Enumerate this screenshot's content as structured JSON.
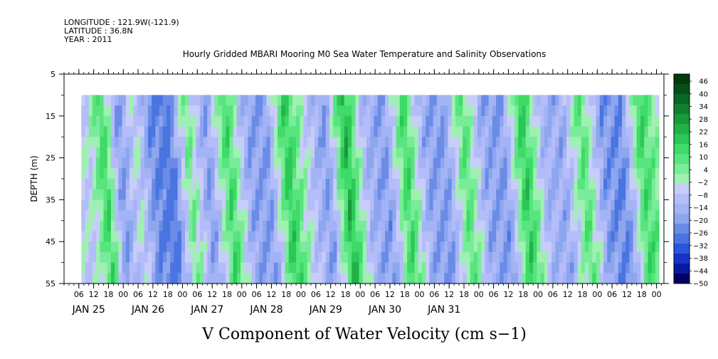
{
  "header": {
    "longitude": "LONGITUDE : 121.9W(-121.9)",
    "latitude": "LATITUDE : 36.8N",
    "year": "YEAR : 2011"
  },
  "colors": {
    "palette": [
      "#000066",
      "#0a1aa0",
      "#1633c8",
      "#2a55dd",
      "#4a74e0",
      "#6a8ce6",
      "#8da6ee",
      "#a3b3f5",
      "#b4bdf9",
      "#c6cef8",
      "#9ff0b2",
      "#78ec98",
      "#58e47e",
      "#3fda68",
      "#2cc857",
      "#21b148",
      "#18993b",
      "#10802f",
      "#0a6623",
      "#055018",
      "#023a0e"
    ],
    "fill_min": -10,
    "fill_max": 24
  },
  "chart_data": {
    "type": "heatmap",
    "title": "Hourly Gridded MBARI Mooring M0 Sea Water Temperature and Salinity Observations",
    "caption": "V Component of Water Velocity (cm s−1)",
    "ylabel": "DEPTH (m)",
    "ylim": [
      5,
      55
    ],
    "y_ticks": [
      5,
      15,
      25,
      35,
      45,
      55
    ],
    "y_tick_labels": [
      "5",
      "15",
      "25",
      "35",
      "45",
      "55"
    ],
    "x_hour_labels": [
      "06",
      "12",
      "18",
      "00",
      "06",
      "12",
      "18",
      "00",
      "06",
      "12",
      "18",
      "00",
      "06",
      "12",
      "18",
      "00",
      "06",
      "12",
      "18",
      "00",
      "06",
      "12",
      "18",
      "00",
      "06",
      "12",
      "18",
      "00",
      "06",
      "12",
      "18",
      "00",
      "06",
      "12",
      "18",
      "00",
      "06",
      "12",
      "18",
      "00"
    ],
    "x_date_labels": [
      "JAN 25",
      "JAN 26",
      "JAN 27",
      "JAN 28",
      "JAN 29",
      "JAN 30",
      "JAN 31"
    ],
    "x_hours_from_jan25": [
      6,
      12,
      18,
      24,
      30,
      36,
      42,
      48,
      54,
      60,
      66,
      72,
      78,
      84,
      90,
      96,
      102,
      108,
      114,
      120,
      126,
      132,
      138,
      144,
      150,
      156,
      162,
      168,
      174,
      180,
      186,
      192,
      198,
      204,
      210,
      216,
      222,
      228,
      234,
      240
    ],
    "x_range_hours": [
      0,
      243
    ],
    "data_range_hours": [
      7,
      241
    ],
    "data_depth_range": [
      10,
      55
    ],
    "colorbar": {
      "labels": [
        "46",
        "40",
        "34",
        "28",
        "22",
        "16",
        "10",
        "4",
        "−2",
        "−8",
        "−14",
        "−20",
        "−26",
        "−32",
        "−38",
        "−44",
        "−50"
      ],
      "levels": [
        46,
        40,
        34,
        28,
        22,
        16,
        10,
        4,
        -2,
        -8,
        -14,
        -20,
        -26,
        -32,
        -38,
        -44,
        -50
      ]
    },
    "surface_velocity_profile": [
      {
        "hour": 8,
        "v": 2
      },
      {
        "hour": 14,
        "v": 12
      },
      {
        "hour": 20,
        "v": -6
      },
      {
        "hour": 27,
        "v": 3
      },
      {
        "hour": 34,
        "v": -8
      },
      {
        "hour": 41,
        "v": -10
      },
      {
        "hour": 48,
        "v": 8
      },
      {
        "hour": 56,
        "v": -6
      },
      {
        "hour": 64,
        "v": 12
      },
      {
        "hour": 72,
        "v": -4
      },
      {
        "hour": 80,
        "v": -6
      },
      {
        "hour": 88,
        "v": 14
      },
      {
        "hour": 96,
        "v": 2
      },
      {
        "hour": 104,
        "v": -6
      },
      {
        "hour": 112,
        "v": 16
      },
      {
        "hour": 120,
        "v": -2
      },
      {
        "hour": 128,
        "v": -6
      },
      {
        "hour": 136,
        "v": 12
      },
      {
        "hour": 144,
        "v": -4
      },
      {
        "hour": 152,
        "v": -6
      },
      {
        "hour": 160,
        "v": 10
      },
      {
        "hour": 168,
        "v": -4
      },
      {
        "hour": 176,
        "v": -6
      },
      {
        "hour": 184,
        "v": 14
      },
      {
        "hour": 192,
        "v": -2
      },
      {
        "hour": 200,
        "v": -4
      },
      {
        "hour": 208,
        "v": 10
      },
      {
        "hour": 216,
        "v": -6
      },
      {
        "hour": 224,
        "v": -8
      },
      {
        "hour": 232,
        "v": 12
      },
      {
        "hour": 240,
        "v": 4
      }
    ],
    "grid": false
  }
}
